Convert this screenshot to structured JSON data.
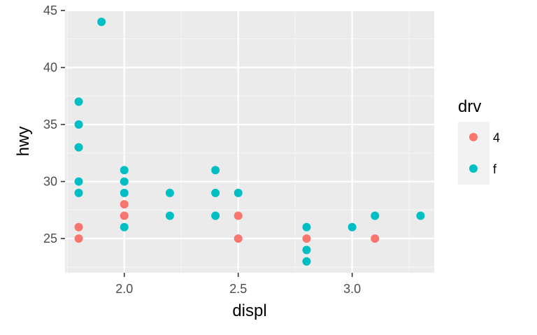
{
  "chart_data": {
    "type": "scatter",
    "xlabel": "displ",
    "ylabel": "hwy",
    "xlim": [
      1.74,
      3.36
    ],
    "ylim": [
      22.0,
      45.0
    ],
    "x_ticks": [
      "2.0",
      "2.5",
      "3.0"
    ],
    "x_tick_values": [
      2.0,
      2.5,
      3.0
    ],
    "x_minor_values": [
      1.75,
      2.25,
      2.75,
      3.25
    ],
    "y_ticks": [
      "25",
      "30",
      "35",
      "40",
      "45"
    ],
    "y_tick_values": [
      25,
      30,
      35,
      40,
      45
    ],
    "y_minor_values": [
      22.5,
      27.5,
      32.5,
      37.5,
      42.5
    ],
    "grid": true,
    "legend": {
      "title": "drv",
      "placement": "right",
      "entries": [
        {
          "label": "4",
          "color": "#F8766D"
        },
        {
          "label": "f",
          "color": "#00BFC4"
        }
      ]
    },
    "series": [
      {
        "name": "4",
        "color": "#F8766D",
        "points": [
          [
            1.8,
            26
          ],
          [
            1.8,
            25
          ],
          [
            2.0,
            28
          ],
          [
            2.0,
            27
          ],
          [
            2.5,
            27
          ],
          [
            2.5,
            25
          ],
          [
            2.8,
            25
          ],
          [
            3.1,
            25
          ]
        ]
      },
      {
        "name": "f",
        "color": "#00BFC4",
        "points": [
          [
            1.8,
            37
          ],
          [
            1.8,
            35
          ],
          [
            1.8,
            33
          ],
          [
            1.8,
            30
          ],
          [
            1.8,
            29
          ],
          [
            1.9,
            44
          ],
          [
            2.0,
            31
          ],
          [
            2.0,
            30
          ],
          [
            2.0,
            29
          ],
          [
            2.0,
            26
          ],
          [
            2.2,
            29
          ],
          [
            2.2,
            27
          ],
          [
            2.4,
            31
          ],
          [
            2.4,
            29
          ],
          [
            2.4,
            27
          ],
          [
            2.5,
            29
          ],
          [
            2.8,
            26
          ],
          [
            2.8,
            24
          ],
          [
            2.8,
            23
          ],
          [
            3.0,
            26
          ],
          [
            3.1,
            27
          ],
          [
            3.3,
            27
          ]
        ]
      }
    ]
  },
  "colors": {
    "panel_background": "#EBEBEB",
    "grid_major": "#FFFFFF",
    "grid_minor": "#F5F5F5",
    "tick_text": "#4D4D4D"
  }
}
